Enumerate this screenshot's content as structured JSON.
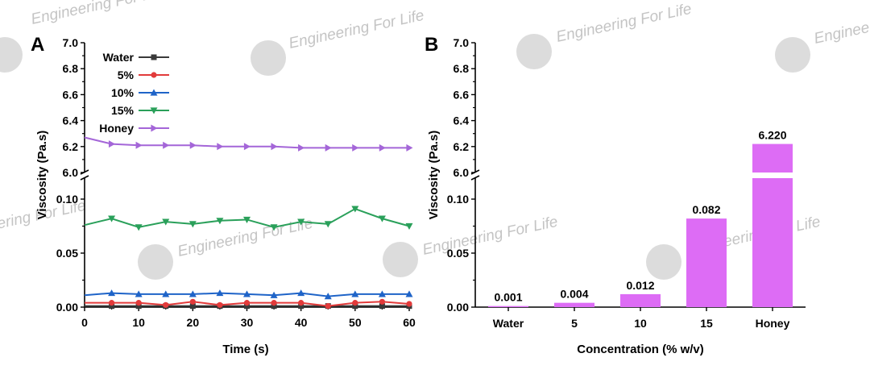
{
  "watermark": {
    "text": "Engineering For Life",
    "logo": "EF2"
  },
  "chart_data": [
    {
      "panel": "A",
      "type": "line",
      "xlabel": "Time (s)",
      "ylabel": "Viscosity (Pa.s)",
      "xlim": [
        0,
        60
      ],
      "x_ticks": [
        "0",
        "10",
        "20",
        "30",
        "40",
        "50",
        "60"
      ],
      "y_lower": {
        "lim": [
          0,
          0.12
        ],
        "ticks": [
          "0.00",
          "0.05",
          "0.10"
        ]
      },
      "y_upper": {
        "lim": [
          6.0,
          7.0
        ],
        "ticks": [
          "6.0",
          "6.2",
          "6.4",
          "6.6",
          "6.8",
          "7.0"
        ]
      },
      "axis_break": true,
      "legend_position": "top-left",
      "x": [
        0,
        5,
        10,
        15,
        20,
        25,
        30,
        35,
        40,
        45,
        50,
        55,
        60
      ],
      "series": [
        {
          "name": "Water",
          "color": "#3a3a3a",
          "marker": "square",
          "values": [
            0.001,
            0.001,
            0.001,
            0.001,
            0.001,
            0.001,
            0.001,
            0.001,
            0.001,
            0.001,
            0.001,
            0.001,
            0.001
          ]
        },
        {
          "name": "5%",
          "color": "#e23b3b",
          "marker": "circle",
          "values": [
            0.004,
            0.004,
            0.004,
            0.002,
            0.005,
            0.002,
            0.004,
            0.004,
            0.004,
            0.001,
            0.004,
            0.005,
            0.003
          ]
        },
        {
          "name": "10%",
          "color": "#1f64c8",
          "marker": "triangle-up",
          "values": [
            0.011,
            0.013,
            0.012,
            0.012,
            0.012,
            0.013,
            0.012,
            0.011,
            0.013,
            0.01,
            0.012,
            0.012,
            0.012
          ]
        },
        {
          "name": "15%",
          "color": "#2aa05a",
          "marker": "triangle-down",
          "values": [
            0.076,
            0.082,
            0.074,
            0.079,
            0.077,
            0.08,
            0.081,
            0.074,
            0.079,
            0.077,
            0.091,
            0.082,
            0.075
          ]
        },
        {
          "name": "Honey",
          "color": "#a466d8",
          "marker": "triangle-right",
          "values": [
            6.27,
            6.22,
            6.21,
            6.21,
            6.21,
            6.2,
            6.2,
            6.2,
            6.19,
            6.19,
            6.19,
            6.19,
            6.19
          ]
        }
      ]
    },
    {
      "panel": "B",
      "type": "bar",
      "xlabel": "Concentration (% w/v)",
      "ylabel": "Viscosity (Pa.s)",
      "categories": [
        "Water",
        "5",
        "10",
        "15",
        "Honey"
      ],
      "values": [
        0.001,
        0.004,
        0.012,
        0.082,
        6.22
      ],
      "value_labels": [
        "0.001",
        "0.004",
        "0.012",
        "0.082",
        "6.220"
      ],
      "bar_color": "#dd6cf5",
      "y_lower": {
        "lim": [
          0,
          0.12
        ],
        "ticks": [
          "0.00",
          "0.05",
          "0.10"
        ]
      },
      "y_upper": {
        "lim": [
          6.0,
          7.0
        ],
        "ticks": [
          "6.0",
          "6.2",
          "6.4",
          "6.6",
          "6.8",
          "7.0"
        ]
      },
      "axis_break": true
    }
  ]
}
